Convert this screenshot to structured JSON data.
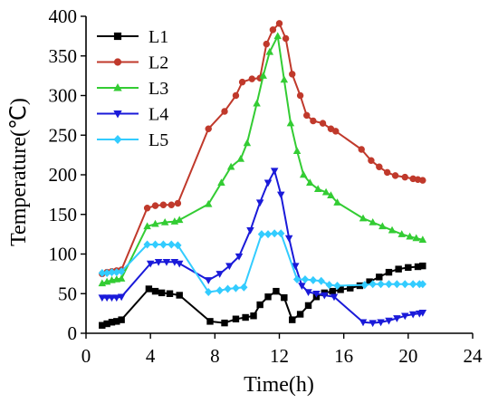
{
  "chart_data": {
    "type": "line",
    "title": "",
    "xlabel": "Time(h)",
    "ylabel": "Temperature(℃)",
    "xlim": [
      0,
      24
    ],
    "ylim": [
      0,
      400
    ],
    "xticks": [
      0,
      4,
      8,
      12,
      16,
      20,
      24
    ],
    "yticks": [
      0,
      50,
      100,
      150,
      200,
      250,
      300,
      350,
      400
    ],
    "grid": false,
    "legend_position": "top-left",
    "series": [
      {
        "name": "L1",
        "color": "#000000",
        "marker": "square",
        "x": [
          1.0,
          1.3,
          1.6,
          1.9,
          2.2,
          3.9,
          4.3,
          4.7,
          5.2,
          5.8,
          7.7,
          8.6,
          9.3,
          9.9,
          10.4,
          10.8,
          11.3,
          11.8,
          12.3,
          12.8,
          13.3,
          13.8,
          14.3,
          14.8,
          15.3,
          15.8,
          16.4,
          17.0,
          17.6,
          18.2,
          18.8,
          19.4,
          20.0,
          20.6,
          20.9
        ],
        "values": [
          10,
          12,
          14,
          15,
          17,
          56,
          53,
          51,
          50,
          48,
          15,
          13,
          18,
          20,
          22,
          36,
          46,
          53,
          45,
          17,
          24,
          35,
          46,
          51,
          53,
          55,
          57,
          60,
          65,
          71,
          77,
          81,
          83,
          84,
          85
        ]
      },
      {
        "name": "L2",
        "color": "#c0392b",
        "marker": "circle",
        "x": [
          1.0,
          1.3,
          1.6,
          1.9,
          2.2,
          3.8,
          4.3,
          4.8,
          5.3,
          5.7,
          7.6,
          8.6,
          9.3,
          9.7,
          10.3,
          10.8,
          11.2,
          11.6,
          12.0,
          12.4,
          12.8,
          13.3,
          13.7,
          14.1,
          14.7,
          15.2,
          15.5,
          17.1,
          17.7,
          18.2,
          18.7,
          19.2,
          19.8,
          20.3,
          20.6,
          20.9
        ],
        "values": [
          75,
          77,
          78,
          79,
          80,
          158,
          161,
          162,
          162,
          164,
          258,
          280,
          300,
          317,
          321,
          322,
          365,
          383,
          391,
          372,
          327,
          300,
          275,
          268,
          265,
          258,
          255,
          232,
          218,
          210,
          203,
          199,
          197,
          195,
          194,
          193
        ]
      },
      {
        "name": "L3",
        "color": "#33cc33",
        "marker": "triangle-up",
        "x": [
          1.0,
          1.3,
          1.6,
          1.9,
          2.2,
          3.8,
          4.3,
          4.9,
          5.5,
          5.8,
          7.6,
          8.4,
          9.0,
          9.6,
          10.0,
          10.6,
          11.0,
          11.4,
          11.9,
          12.3,
          12.7,
          13.1,
          13.5,
          13.9,
          14.4,
          14.9,
          15.2,
          15.6,
          17.2,
          17.8,
          18.4,
          19.0,
          19.6,
          20.1,
          20.5,
          20.9
        ],
        "values": [
          63,
          65,
          67,
          68,
          69,
          135,
          138,
          140,
          141,
          143,
          163,
          190,
          210,
          220,
          240,
          290,
          325,
          355,
          375,
          320,
          265,
          230,
          200,
          190,
          182,
          178,
          174,
          165,
          145,
          140,
          135,
          130,
          125,
          122,
          120,
          118
        ]
      },
      {
        "name": "L4",
        "color": "#1a1ad9",
        "marker": "triangle-down",
        "x": [
          1.0,
          1.3,
          1.6,
          1.9,
          2.2,
          4.0,
          4.5,
          5.0,
          5.5,
          5.8,
          7.6,
          8.3,
          8.9,
          9.5,
          10.2,
          10.8,
          11.3,
          11.7,
          12.1,
          12.6,
          13.0,
          13.4,
          13.8,
          14.3,
          14.8,
          15.4,
          17.2,
          17.8,
          18.3,
          18.8,
          19.3,
          19.8,
          20.3,
          20.7,
          20.9
        ],
        "values": [
          45,
          45,
          45,
          45,
          46,
          88,
          90,
          90,
          90,
          88,
          67,
          75,
          85,
          97,
          130,
          165,
          190,
          205,
          175,
          120,
          85,
          60,
          52,
          50,
          48,
          46,
          14,
          13,
          14,
          16,
          19,
          22,
          24,
          25,
          26
        ]
      },
      {
        "name": "L5",
        "color": "#33ccff",
        "marker": "diamond",
        "x": [
          1.0,
          1.3,
          1.6,
          1.9,
          2.2,
          3.8,
          4.3,
          4.8,
          5.3,
          5.7,
          7.6,
          8.3,
          8.8,
          9.3,
          9.8,
          10.9,
          11.3,
          11.7,
          12.1,
          13.1,
          13.6,
          14.1,
          14.6,
          15.1,
          15.6,
          17.3,
          17.8,
          18.3,
          18.8,
          19.3,
          19.8,
          20.3,
          20.7,
          20.9
        ],
        "values": [
          76,
          76,
          77,
          77,
          78,
          112,
          112,
          112,
          112,
          111,
          52,
          54,
          56,
          57,
          58,
          125,
          125,
          126,
          126,
          68,
          68,
          67,
          66,
          61,
          60,
          61,
          62,
          62,
          62,
          62,
          62,
          62,
          62,
          62
        ]
      }
    ]
  }
}
